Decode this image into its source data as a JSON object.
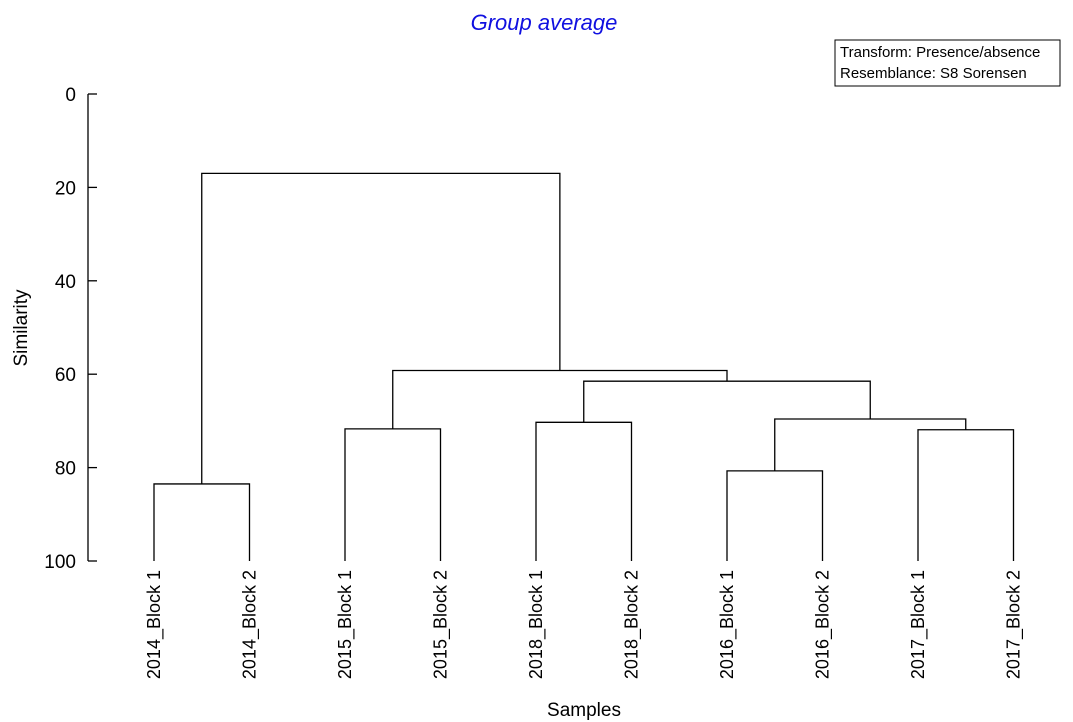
{
  "chart_data": {
    "type": "dendrogram",
    "title": "Group average",
    "title_color": "#1010e0",
    "ylabel": "Similarity",
    "xlabel": "Samples",
    "ylim": [
      0,
      100
    ],
    "y_inverted": true,
    "y_ticks": [
      0,
      20,
      40,
      60,
      80,
      100
    ],
    "annotation": [
      "Transform: Presence/absence",
      "Resemblance: S8 Sorensen"
    ],
    "leaves": [
      "2014_Block 1",
      "2014_Block 2",
      "2015_Block 1",
      "2015_Block 2",
      "2018_Block 1",
      "2018_Block 2",
      "2016_Block 1",
      "2016_Block 2",
      "2017_Block 1",
      "2017_Block 2"
    ],
    "merges": [
      {
        "left": "L0",
        "right": "L1",
        "similarity": 83.5
      },
      {
        "left": "L2",
        "right": "L3",
        "similarity": 71.7
      },
      {
        "left": "L4",
        "right": "L5",
        "similarity": 70.3
      },
      {
        "left": "L6",
        "right": "L7",
        "similarity": 80.7
      },
      {
        "left": "L8",
        "right": "L9",
        "similarity": 71.9
      },
      {
        "left": "M3",
        "right": "M4",
        "similarity": 69.6
      },
      {
        "left": "M2",
        "right": "M5",
        "similarity": 61.5
      },
      {
        "left": "M1",
        "right": "M6",
        "similarity": 59.2
      },
      {
        "left": "M0",
        "right": "M7",
        "similarity": 17.0
      }
    ]
  }
}
